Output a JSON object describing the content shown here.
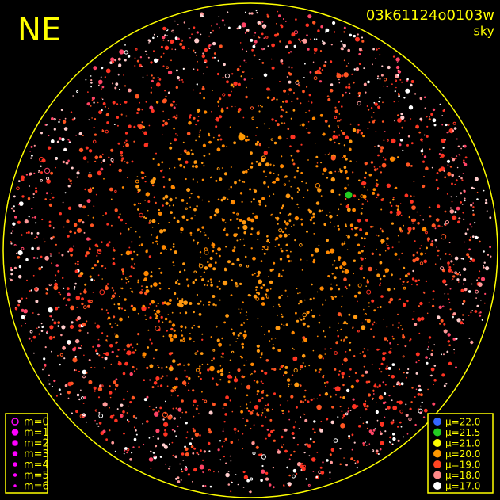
{
  "header": {
    "direction": "NE",
    "frame_id": "03k61124o0103w",
    "frame_type": "sky"
  },
  "magnitude_legend": {
    "labels": [
      "m=0",
      "m=1",
      "m=2",
      "m=3",
      "m=4",
      "m=5",
      "m=6"
    ],
    "color": "#ff00ff"
  },
  "brightness_legend": {
    "items": [
      {
        "label": "μ=22.0",
        "color": "#3366ff"
      },
      {
        "label": "μ=21.5",
        "color": "#22cc22"
      },
      {
        "label": "μ=21.0",
        "color": "#ffff00"
      },
      {
        "label": "μ=20.0",
        "color": "#ff9900"
      },
      {
        "label": "μ=19.0",
        "color": "#ff4422"
      },
      {
        "label": "μ=18.0",
        "color": "#ff8888"
      },
      {
        "label": "μ=17.0",
        "color": "#ffffff"
      }
    ]
  }
}
